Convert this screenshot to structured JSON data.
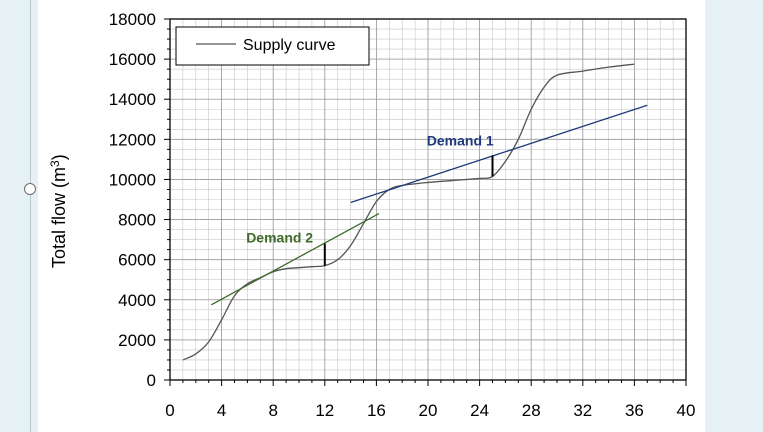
{
  "chart_data": {
    "type": "line",
    "title": "",
    "xlabel": "",
    "ylabel": "Total flow (m³)",
    "ylabel_parts": {
      "text": "Total flow (m",
      "sup": "3",
      "close": ")"
    },
    "xlim": [
      0,
      40
    ],
    "ylim": [
      0,
      18000
    ],
    "x_ticks": [
      0,
      4,
      8,
      12,
      16,
      20,
      24,
      28,
      32,
      36,
      40
    ],
    "y_ticks": [
      0,
      2000,
      4000,
      6000,
      8000,
      10000,
      12000,
      14000,
      16000,
      18000
    ],
    "grid": true,
    "legend": {
      "position": "top-left",
      "entries": [
        "Supply curve"
      ]
    },
    "series": [
      {
        "name": "Supply curve",
        "color": "#555555",
        "points": [
          [
            1,
            1000
          ],
          [
            2,
            1300
          ],
          [
            3,
            1900
          ],
          [
            4,
            3000
          ],
          [
            5,
            4200
          ],
          [
            6,
            4800
          ],
          [
            7,
            5100
          ],
          [
            8,
            5400
          ],
          [
            9,
            5550
          ],
          [
            10,
            5600
          ],
          [
            11,
            5650
          ],
          [
            12,
            5700
          ],
          [
            13,
            6000
          ],
          [
            14,
            6700
          ],
          [
            15,
            7800
          ],
          [
            16,
            8900
          ],
          [
            17,
            9500
          ],
          [
            18,
            9700
          ],
          [
            20,
            9850
          ],
          [
            22,
            9950
          ],
          [
            24,
            10050
          ],
          [
            25,
            10150
          ],
          [
            26,
            10900
          ],
          [
            27,
            12000
          ],
          [
            28,
            13500
          ],
          [
            29,
            14600
          ],
          [
            30,
            15200
          ],
          [
            32,
            15400
          ],
          [
            34,
            15600
          ],
          [
            36,
            15750
          ]
        ]
      },
      {
        "name": "Demand 1",
        "color": "#1f3a7a",
        "points": [
          [
            14,
            8850
          ],
          [
            37,
            13700
          ]
        ]
      },
      {
        "name": "Demand 2",
        "color": "#3f6a2a",
        "points": [
          [
            3.2,
            3750
          ],
          [
            16.2,
            8300
          ]
        ]
      }
    ],
    "markers": [
      {
        "x": 12,
        "y_from": 5700,
        "y_to": 6800
      },
      {
        "x": 25,
        "y_from": 10150,
        "y_to": 11200
      }
    ],
    "annotations": [
      {
        "text": "Demand 1",
        "x": 22.5,
        "y": 11700,
        "color": "#1f3a7a"
      },
      {
        "text": "Demand 2",
        "x": 8.5,
        "y": 6850,
        "color": "#3f6a2a"
      }
    ]
  }
}
